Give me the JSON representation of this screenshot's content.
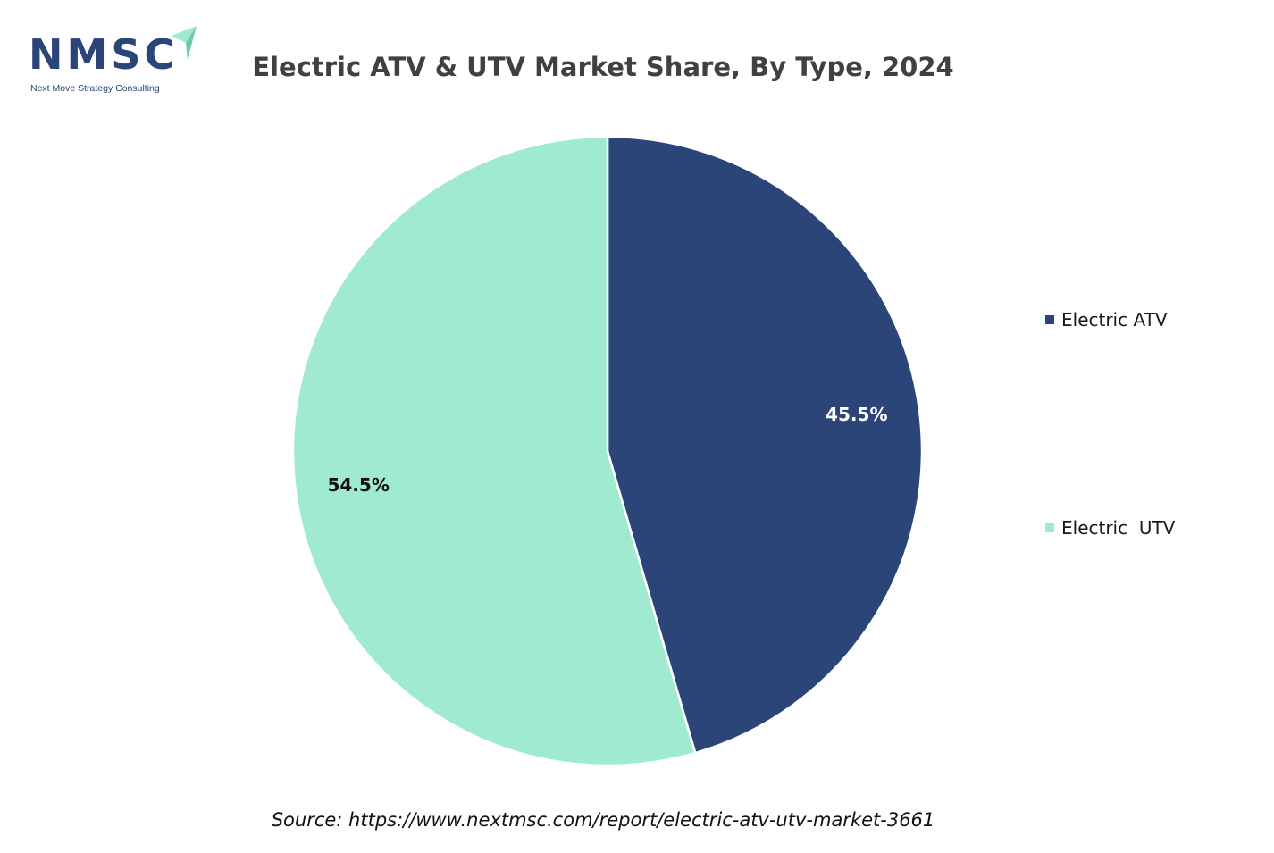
{
  "branding": {
    "logo_text": "NMSC",
    "tagline": "Next Move Strategy Consulting",
    "brand_color": "#2b4579",
    "accent_color": "#a0ead2"
  },
  "chart_data": {
    "type": "pie",
    "title": "Electric ATV & UTV Market Share, By Type, 2024",
    "categories": [
      "Electric ATV",
      "Electric  UTV"
    ],
    "values": [
      45.5,
      54.5
    ],
    "labels": [
      "45.5%",
      "54.5%"
    ],
    "colors": [
      "#2b4579",
      "#a0ead2"
    ],
    "label_colors": [
      "#ffffff",
      "#111111"
    ],
    "start_angle": "12 o'clock, clockwise",
    "legend_position": "right"
  },
  "source": {
    "text": "Source: https://www.nextmsc.com/report/electric-atv-utv-market-3661"
  }
}
